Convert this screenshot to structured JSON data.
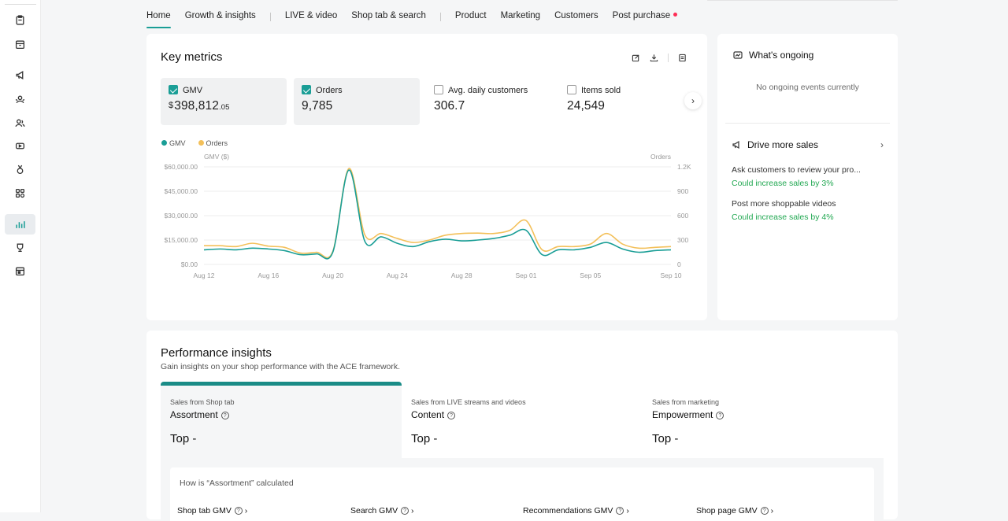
{
  "sidebar": {
    "items": [
      {
        "icon": "clipboard-icon"
      },
      {
        "icon": "box-icon"
      },
      {
        "icon": "megaphone-icon"
      },
      {
        "icon": "affiliate-icon"
      },
      {
        "icon": "customers-icon"
      },
      {
        "icon": "video-icon"
      },
      {
        "icon": "medal-icon"
      },
      {
        "icon": "apps-icon"
      },
      {
        "icon": "analytics-icon",
        "active": true
      },
      {
        "icon": "trophy-icon"
      },
      {
        "icon": "calendar-icon"
      }
    ]
  },
  "tabs": [
    {
      "label": "Home",
      "active": true
    },
    {
      "label": "Growth & insights"
    },
    {
      "label": "LIVE & video"
    },
    {
      "label": "Shop tab & search"
    },
    {
      "label": "Product"
    },
    {
      "label": "Marketing"
    },
    {
      "label": "Customers"
    },
    {
      "label": "Post purchase"
    }
  ],
  "key_metrics": {
    "title": "Key metrics",
    "tools": [
      "edit-icon",
      "download-icon",
      "table-icon"
    ],
    "metrics": [
      {
        "label": "GMV",
        "currency": "$",
        "value": "398,812",
        "decimals": ".05",
        "checked": true
      },
      {
        "label": "Orders",
        "value": "9,785",
        "checked": true
      },
      {
        "label": "Avg. daily customers",
        "value": "306.7",
        "checked": false
      },
      {
        "label": "Items sold",
        "value": "24,549",
        "checked": false
      }
    ]
  },
  "colors": {
    "gmv": "#1a9e96",
    "orders": "#f3c05a",
    "accent": "#1a9e96",
    "green_text": "#22a852"
  },
  "chart_data": {
    "type": "line",
    "legend": [
      {
        "name": "GMV",
        "color": "#1a9e96"
      },
      {
        "name": "Orders",
        "color": "#f3c05a"
      }
    ],
    "legend_position": "top-left",
    "ylabel_left": "GMV ($)",
    "ylabel_right": "Orders",
    "yticks_left": [
      "$60,000.00",
      "$45,000.00",
      "$30,000.00",
      "$15,000.00",
      "$0.00"
    ],
    "yticks_right": [
      "1.2K",
      "900",
      "600",
      "300",
      "0"
    ],
    "ylim_left": [
      0,
      60000
    ],
    "ylim_right": [
      0,
      1200
    ],
    "xticks": [
      "Aug 12",
      "Aug 16",
      "Aug 20",
      "Aug 24",
      "Aug 28",
      "Sep 01",
      "Sep 05",
      "Sep 10"
    ],
    "x": [
      "Aug 12",
      "Aug 13",
      "Aug 14",
      "Aug 15",
      "Aug 16",
      "Aug 17",
      "Aug 18",
      "Aug 19",
      "Aug 20",
      "Aug 21",
      "Aug 22",
      "Aug 23",
      "Aug 24",
      "Aug 25",
      "Aug 26",
      "Aug 27",
      "Aug 28",
      "Aug 29",
      "Aug 30",
      "Aug 31",
      "Sep 01",
      "Sep 02",
      "Sep 03",
      "Sep 04",
      "Sep 05",
      "Sep 06",
      "Sep 07",
      "Sep 08",
      "Sep 09",
      "Sep 10"
    ],
    "grid": true,
    "series": [
      {
        "name": "GMV",
        "axis": "left",
        "values": [
          9000,
          9500,
          9000,
          10000,
          9500,
          8500,
          6000,
          6500,
          7500,
          58000,
          14000,
          17000,
          13000,
          11000,
          14000,
          15500,
          14500,
          15000,
          16000,
          18000,
          21000,
          6000,
          9000,
          9000,
          10500,
          13500,
          9500,
          7500,
          8500,
          9000
        ]
      },
      {
        "name": "Orders",
        "axis": "right",
        "values": [
          230,
          230,
          220,
          260,
          225,
          210,
          140,
          150,
          160,
          1180,
          360,
          380,
          320,
          270,
          300,
          360,
          380,
          385,
          380,
          420,
          540,
          180,
          220,
          220,
          250,
          380,
          250,
          200,
          210,
          220
        ]
      }
    ]
  },
  "ongoing": {
    "title": "What's ongoing",
    "empty": "No ongoing events currently",
    "drive_title": "Drive more sales",
    "tips": [
      {
        "text": "Ask customers to review your pro...",
        "impact": "Could increase sales by 3%"
      },
      {
        "text": "Post more shoppable videos",
        "impact": "Could increase sales by 4%"
      }
    ]
  },
  "performance": {
    "title": "Performance insights",
    "subtitle": "Gain insights on your shop performance with the ACE framework.",
    "columns": [
      {
        "small": "Sales from Shop tab",
        "title": "Assortment",
        "top": "Top -",
        "active": true
      },
      {
        "small": "Sales from LIVE streams and videos",
        "title": "Content",
        "top": "Top -"
      },
      {
        "small": "Sales from marketing",
        "title": "Empowerment",
        "top": "Top -"
      }
    ],
    "calc_question": "How is “Assortment” calculated",
    "calc_items": [
      "Shop tab GMV",
      "Search GMV",
      "Recommendations GMV",
      "Shop page GMV"
    ]
  }
}
